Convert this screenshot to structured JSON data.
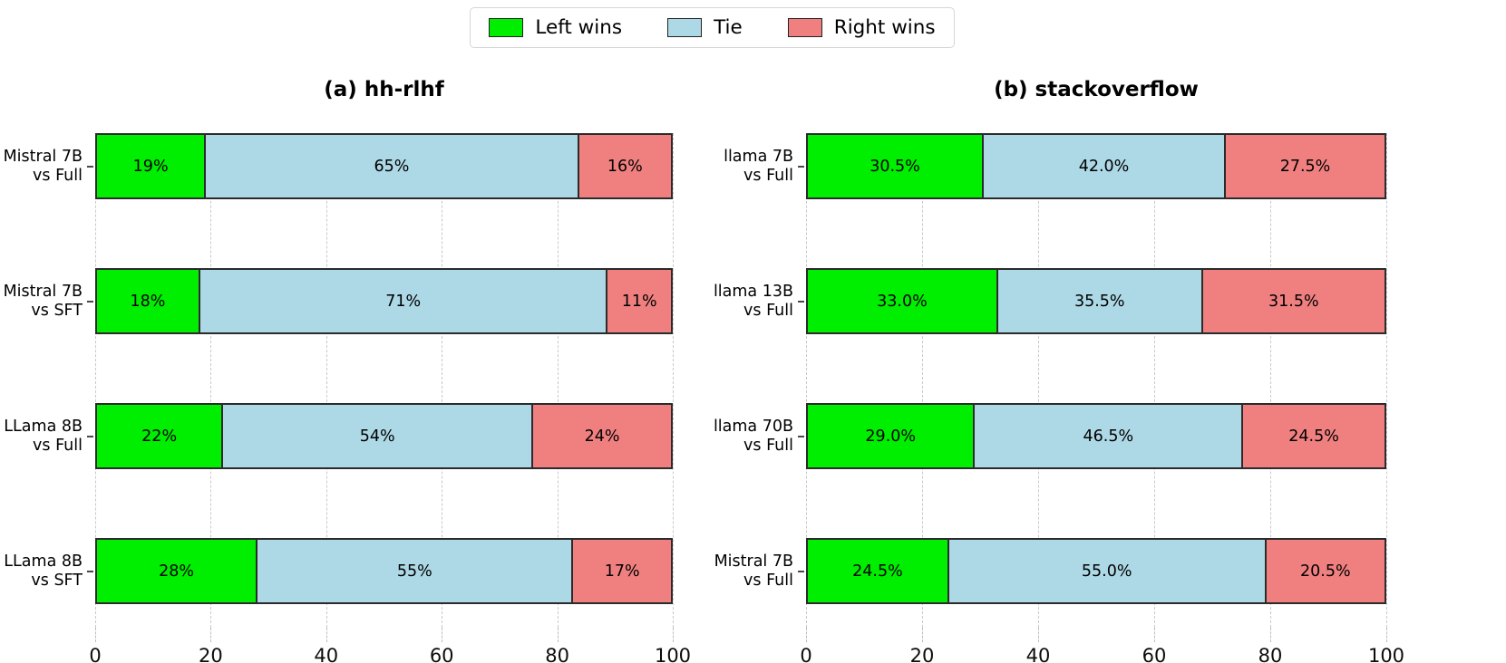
{
  "legend": {
    "items": [
      {
        "label": "Left wins",
        "color": "#00ee00"
      },
      {
        "label": "Tie",
        "color": "#add8e6"
      },
      {
        "label": "Right wins",
        "color": "#f08080"
      }
    ]
  },
  "chart_data": [
    {
      "type": "bar",
      "orientation": "horizontal",
      "stacked": true,
      "title": "(a) hh-rlhf",
      "xlabel": "",
      "ylabel": "",
      "xlim": [
        0,
        100
      ],
      "xticks": [
        0,
        20,
        40,
        60,
        80,
        100
      ],
      "grid": true,
      "legend_position": "top-center-figure",
      "categories": [
        "Mistral 7B vs Full",
        "Mistral 7B vs SFT",
        "LLama 8B vs Full",
        "LLama 8B vs SFT"
      ],
      "series": [
        {
          "name": "Left wins",
          "values": [
            19,
            18,
            22,
            28
          ]
        },
        {
          "name": "Tie",
          "values": [
            65,
            71,
            54,
            55
          ]
        },
        {
          "name": "Right wins",
          "values": [
            16,
            11,
            24,
            17
          ]
        }
      ],
      "rows": [
        {
          "cat1": "Mistral 7B",
          "cat2": "vs Full",
          "segments": [
            {
              "name": "Left wins",
              "value": 19,
              "label": "19%"
            },
            {
              "name": "Tie",
              "value": 65,
              "label": "65%"
            },
            {
              "name": "Right wins",
              "value": 16,
              "label": "16%"
            }
          ]
        },
        {
          "cat1": "Mistral 7B",
          "cat2": "vs SFT",
          "segments": [
            {
              "name": "Left wins",
              "value": 18,
              "label": "18%"
            },
            {
              "name": "Tie",
              "value": 71,
              "label": "71%"
            },
            {
              "name": "Right wins",
              "value": 11,
              "label": "11%"
            }
          ]
        },
        {
          "cat1": "LLama 8B",
          "cat2": "vs Full",
          "segments": [
            {
              "name": "Left wins",
              "value": 22,
              "label": "22%"
            },
            {
              "name": "Tie",
              "value": 54,
              "label": "54%"
            },
            {
              "name": "Right wins",
              "value": 24,
              "label": "24%"
            }
          ]
        },
        {
          "cat1": "LLama 8B",
          "cat2": "vs SFT",
          "segments": [
            {
              "name": "Left wins",
              "value": 28,
              "label": "28%"
            },
            {
              "name": "Tie",
              "value": 55,
              "label": "55%"
            },
            {
              "name": "Right wins",
              "value": 17,
              "label": "17%"
            }
          ]
        }
      ]
    },
    {
      "type": "bar",
      "orientation": "horizontal",
      "stacked": true,
      "title": "(b) stackoverflow",
      "xlabel": "",
      "ylabel": "",
      "xlim": [
        0,
        100
      ],
      "xticks": [
        0,
        20,
        40,
        60,
        80,
        100
      ],
      "grid": true,
      "legend_position": "top-center-figure",
      "categories": [
        "llama 7B vs Full",
        "llama 13B vs Full",
        "llama 70B vs Full",
        "Mistral 7B vs Full"
      ],
      "series": [
        {
          "name": "Left wins",
          "values": [
            30.5,
            33.0,
            29.0,
            24.5
          ]
        },
        {
          "name": "Tie",
          "values": [
            42.0,
            35.5,
            46.5,
            55.0
          ]
        },
        {
          "name": "Right wins",
          "values": [
            27.5,
            31.5,
            24.5,
            20.5
          ]
        }
      ],
      "rows": [
        {
          "cat1": "llama 7B",
          "cat2": "vs Full",
          "segments": [
            {
              "name": "Left wins",
              "value": 30.5,
              "label": "30.5%"
            },
            {
              "name": "Tie",
              "value": 42.0,
              "label": "42.0%"
            },
            {
              "name": "Right wins",
              "value": 27.5,
              "label": "27.5%"
            }
          ]
        },
        {
          "cat1": "llama 13B",
          "cat2": "vs Full",
          "segments": [
            {
              "name": "Left wins",
              "value": 33.0,
              "label": "33.0%"
            },
            {
              "name": "Tie",
              "value": 35.5,
              "label": "35.5%"
            },
            {
              "name": "Right wins",
              "value": 31.5,
              "label": "31.5%"
            }
          ]
        },
        {
          "cat1": "llama 70B",
          "cat2": "vs Full",
          "segments": [
            {
              "name": "Left wins",
              "value": 29.0,
              "label": "29.0%"
            },
            {
              "name": "Tie",
              "value": 46.5,
              "label": "46.5%"
            },
            {
              "name": "Right wins",
              "value": 24.5,
              "label": "24.5%"
            }
          ]
        },
        {
          "cat1": "Mistral 7B",
          "cat2": "vs Full",
          "segments": [
            {
              "name": "Left wins",
              "value": 24.5,
              "label": "24.5%"
            },
            {
              "name": "Tie",
              "value": 55.0,
              "label": "55.0%"
            },
            {
              "name": "Right wins",
              "value": 20.5,
              "label": "20.5%"
            }
          ]
        }
      ]
    }
  ]
}
